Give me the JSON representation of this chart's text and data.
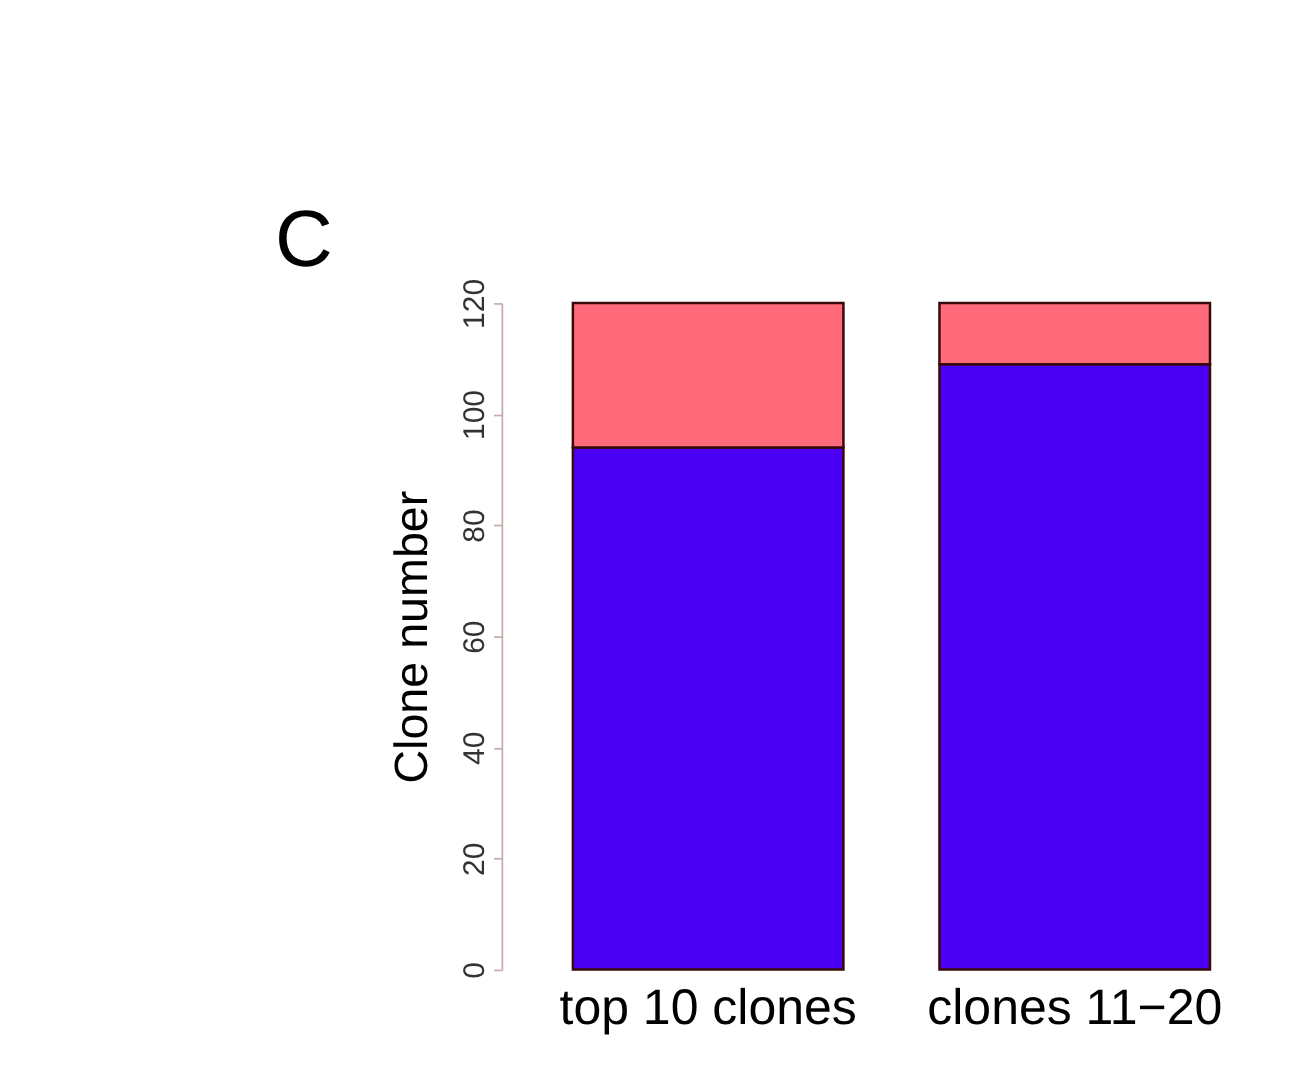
{
  "chart_data": {
    "type": "bar",
    "stacked": true,
    "ylabel": "Clone number",
    "annotations": [
      "C"
    ],
    "categories": [
      "top 10 clones",
      "clones 11−20"
    ],
    "series": [
      {
        "color": "#4a00f2",
        "values": [
          94,
          109
        ]
      },
      {
        "color": "#ff6b7b",
        "values": [
          26,
          11
        ]
      }
    ],
    "ylim": [
      0,
      120
    ],
    "yticks": [
      0,
      20,
      40,
      60,
      80,
      100,
      120
    ],
    "grid": false
  }
}
